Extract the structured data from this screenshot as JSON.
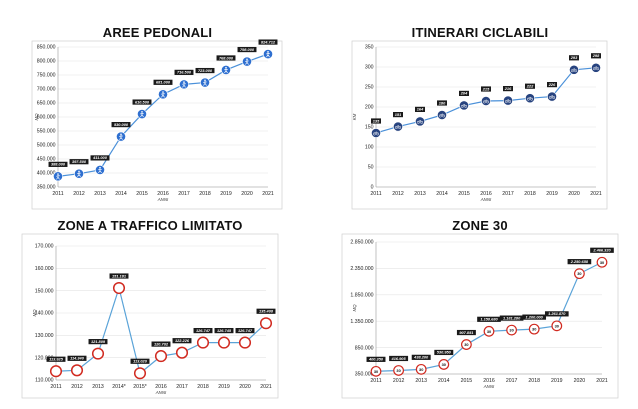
{
  "chart_data": [
    {
      "id": "aree",
      "type": "line",
      "title": "AREE PEDONALI",
      "xlabel": "ANNI",
      "ylabel": "MQ",
      "marker": "pedestrian-icon",
      "ylim": [
        350000,
        850000
      ],
      "yticks": [
        350000,
        400000,
        450000,
        500000,
        550000,
        600000,
        650000,
        700000,
        750000,
        800000,
        850000
      ],
      "ytick_labels": [
        "350.000",
        "400.000",
        "450.000",
        "500.000",
        "550.000",
        "600.000",
        "650.000",
        "700.000",
        "750.000",
        "800.000",
        "850.000"
      ],
      "categories": [
        "2011",
        "2012",
        "2013",
        "2014",
        "2015",
        "2016",
        "2017",
        "2018",
        "2019",
        "2020",
        "2021"
      ],
      "values": [
        388000,
        397500,
        411000,
        530000,
        610500,
        681000,
        716500,
        723000,
        768000,
        798000,
        824712
      ],
      "data_labels": [
        "388.000",
        "397.500",
        "411.000",
        "530.000",
        "610.500",
        "681.000",
        "716.500",
        "723.000",
        "768.000",
        "798.000",
        "824.712"
      ]
    },
    {
      "id": "itinerari",
      "type": "line",
      "title": "ITINERARI CICLABILI",
      "xlabel": "ANNI",
      "ylabel": "KM",
      "marker": "bicycle-icon",
      "ylim": [
        0,
        350
      ],
      "yticks": [
        0,
        50,
        100,
        150,
        200,
        250,
        300,
        350
      ],
      "ytick_labels": [
        "0",
        "50",
        "100",
        "150",
        "200",
        "250",
        "300",
        "350"
      ],
      "categories": [
        "2011",
        "2012",
        "2013",
        "2014",
        "2015",
        "2016",
        "2017",
        "2018",
        "2019",
        "2020",
        "2021"
      ],
      "values": [
        135,
        151,
        164,
        180,
        204,
        215,
        216,
        222,
        226,
        293,
        298
      ],
      "data_labels": [
        "135",
        "151",
        "164",
        "180",
        "204",
        "215",
        "216",
        "222",
        "226",
        "293",
        "298"
      ]
    },
    {
      "id": "ztl",
      "type": "line",
      "title": "ZONE A TRAFFICO LIMITATO",
      "xlabel": "ANNI",
      "ylabel": "MQ",
      "marker": "no-entry-sign-icon",
      "ylim": [
        110000,
        170000
      ],
      "yticks": [
        110000,
        120000,
        130000,
        140000,
        150000,
        160000,
        170000
      ],
      "ytick_labels": [
        "110.000",
        "120.000",
        "130.000",
        "140.000",
        "150.000",
        "160.000",
        "170.000"
      ],
      "categories": [
        "2011",
        "2012",
        "2013",
        "2014*",
        "2015*",
        "2016",
        "2017",
        "2018",
        "2019",
        "2020",
        "2021"
      ],
      "values": [
        113925,
        114340,
        121809,
        151181,
        113020,
        120702,
        122226,
        126747,
        126745,
        126747,
        135408
      ],
      "data_labels": [
        "113.925",
        "114.340",
        "121.809",
        "151.181",
        "113.020",
        "120.702",
        "122.226",
        "126.747",
        "126.745",
        "126.747",
        "135.408"
      ]
    },
    {
      "id": "zone30",
      "type": "line",
      "title": "ZONE 30",
      "xlabel": "ANNI",
      "ylabel": "MQ",
      "marker": "speed-limit-30-sign-icon",
      "ylim": [
        350000,
        2850000
      ],
      "yticks": [
        350000,
        850000,
        1350000,
        1850000,
        2350000,
        2850000
      ],
      "ytick_labels": [
        "350.000",
        "850.000",
        "1.350.000",
        "1.850.000",
        "2.350.000",
        "2.850.000"
      ],
      "categories": [
        "2011",
        "2012",
        "2013",
        "2014",
        "2015",
        "2016",
        "2017",
        "2018",
        "2019",
        "2020",
        "2021"
      ],
      "values": [
        400350,
        416905,
        438200,
        530950,
        907851,
        1158680,
        1181280,
        1200000,
        1261870,
        2250658,
        2466320
      ],
      "data_labels": [
        "400.350",
        "416.905",
        "438.200",
        "530.950",
        "907.851",
        "1.158.680",
        "1.181.280",
        "1.200.000",
        "1.261.870",
        "2.250.658",
        "2.466.320"
      ]
    }
  ]
}
